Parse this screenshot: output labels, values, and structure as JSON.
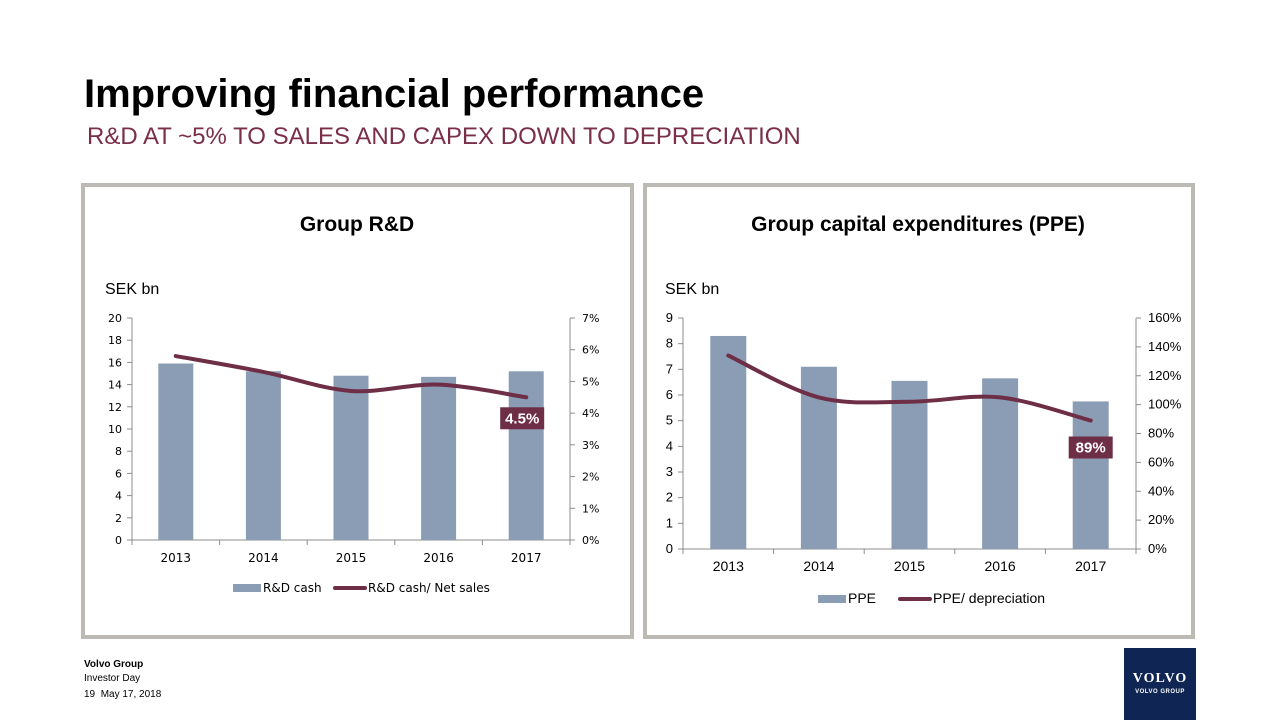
{
  "header": {
    "title": "Improving financial performance",
    "subtitle": "R&D AT ~5% TO SALES AND CAPEX DOWN TO DEPRECIATION"
  },
  "colors": {
    "bar": "#8a9db5",
    "line": "#6e2e46",
    "accent": "#7a2e49",
    "label_bg": "#6e2e46"
  },
  "chart_data": [
    {
      "type": "bar+line",
      "title": "Group R&D",
      "unit_label": "SEK bn",
      "categories": [
        "2013",
        "2014",
        "2015",
        "2016",
        "2017"
      ],
      "series": [
        {
          "name": "R&D cash",
          "type": "bar",
          "axis": "left",
          "values": [
            15.9,
            15.2,
            14.8,
            14.7,
            15.2
          ]
        },
        {
          "name": "R&D cash/ Net sales",
          "type": "line",
          "axis": "right",
          "values": [
            5.8,
            5.3,
            4.7,
            4.9,
            4.5
          ]
        }
      ],
      "y_left": {
        "min": 0,
        "max": 20,
        "ticks": [
          "0",
          "2",
          "4",
          "6",
          "8",
          "10",
          "12",
          "14",
          "16",
          "18",
          "20"
        ]
      },
      "y_right": {
        "min": 0,
        "max": 7,
        "ticks": [
          "0%",
          "1%",
          "2%",
          "3%",
          "4%",
          "5%",
          "6%",
          "7%"
        ]
      },
      "annotation": "4.5%",
      "legend": "bottom-center",
      "grid": false
    },
    {
      "type": "bar+line",
      "title": "Group capital expenditures (PPE)",
      "unit_label": "SEK bn",
      "categories": [
        "2013",
        "2014",
        "2015",
        "2016",
        "2017"
      ],
      "series": [
        {
          "name": "PPE",
          "type": "bar",
          "axis": "left",
          "values": [
            8.3,
            7.1,
            6.55,
            6.65,
            5.75
          ]
        },
        {
          "name": "PPE/ depreciation",
          "type": "line",
          "axis": "right",
          "values": [
            134,
            105,
            102,
            105,
            89
          ]
        }
      ],
      "y_left": {
        "min": 0,
        "max": 9,
        "ticks": [
          "0",
          "1",
          "2",
          "3",
          "4",
          "5",
          "6",
          "7",
          "8",
          "9"
        ]
      },
      "y_right": {
        "min": 0,
        "max": 160,
        "ticks": [
          "0%",
          "20%",
          "40%",
          "60%",
          "80%",
          "100%",
          "120%",
          "140%",
          "160%"
        ]
      },
      "annotation": "89%",
      "legend": "bottom-center",
      "grid": false
    }
  ],
  "footer": {
    "company": "Volvo Group",
    "event": "Investor Day",
    "page": "19",
    "date": "May 17, 2018"
  },
  "logo": {
    "word": "VOLVO",
    "sub": "VOLVO GROUP"
  }
}
